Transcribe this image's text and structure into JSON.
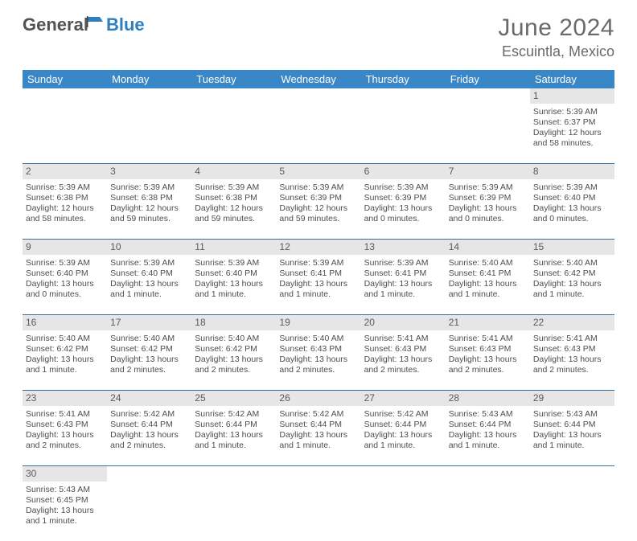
{
  "brand": {
    "general": "General",
    "blue": "Blue"
  },
  "title": "June 2024",
  "location": "Escuintla, Mexico",
  "colors": {
    "header_bg": "#3a87c8",
    "header_fg": "#ffffff",
    "row_divider": "#2f6fa8",
    "datenum_bg": "#e6e6e6",
    "text": "#4e4e4e"
  },
  "dayNames": [
    "Sunday",
    "Monday",
    "Tuesday",
    "Wednesday",
    "Thursday",
    "Friday",
    "Saturday"
  ],
  "weeks": [
    [
      null,
      null,
      null,
      null,
      null,
      null,
      {
        "d": "1",
        "sr": "Sunrise: 5:39 AM",
        "ss": "Sunset: 6:37 PM",
        "dl": "Daylight: 12 hours and 58 minutes."
      }
    ],
    [
      {
        "d": "2",
        "sr": "Sunrise: 5:39 AM",
        "ss": "Sunset: 6:38 PM",
        "dl": "Daylight: 12 hours and 58 minutes."
      },
      {
        "d": "3",
        "sr": "Sunrise: 5:39 AM",
        "ss": "Sunset: 6:38 PM",
        "dl": "Daylight: 12 hours and 59 minutes."
      },
      {
        "d": "4",
        "sr": "Sunrise: 5:39 AM",
        "ss": "Sunset: 6:38 PM",
        "dl": "Daylight: 12 hours and 59 minutes."
      },
      {
        "d": "5",
        "sr": "Sunrise: 5:39 AM",
        "ss": "Sunset: 6:39 PM",
        "dl": "Daylight: 12 hours and 59 minutes."
      },
      {
        "d": "6",
        "sr": "Sunrise: 5:39 AM",
        "ss": "Sunset: 6:39 PM",
        "dl": "Daylight: 13 hours and 0 minutes."
      },
      {
        "d": "7",
        "sr": "Sunrise: 5:39 AM",
        "ss": "Sunset: 6:39 PM",
        "dl": "Daylight: 13 hours and 0 minutes."
      },
      {
        "d": "8",
        "sr": "Sunrise: 5:39 AM",
        "ss": "Sunset: 6:40 PM",
        "dl": "Daylight: 13 hours and 0 minutes."
      }
    ],
    [
      {
        "d": "9",
        "sr": "Sunrise: 5:39 AM",
        "ss": "Sunset: 6:40 PM",
        "dl": "Daylight: 13 hours and 0 minutes."
      },
      {
        "d": "10",
        "sr": "Sunrise: 5:39 AM",
        "ss": "Sunset: 6:40 PM",
        "dl": "Daylight: 13 hours and 1 minute."
      },
      {
        "d": "11",
        "sr": "Sunrise: 5:39 AM",
        "ss": "Sunset: 6:40 PM",
        "dl": "Daylight: 13 hours and 1 minute."
      },
      {
        "d": "12",
        "sr": "Sunrise: 5:39 AM",
        "ss": "Sunset: 6:41 PM",
        "dl": "Daylight: 13 hours and 1 minute."
      },
      {
        "d": "13",
        "sr": "Sunrise: 5:39 AM",
        "ss": "Sunset: 6:41 PM",
        "dl": "Daylight: 13 hours and 1 minute."
      },
      {
        "d": "14",
        "sr": "Sunrise: 5:40 AM",
        "ss": "Sunset: 6:41 PM",
        "dl": "Daylight: 13 hours and 1 minute."
      },
      {
        "d": "15",
        "sr": "Sunrise: 5:40 AM",
        "ss": "Sunset: 6:42 PM",
        "dl": "Daylight: 13 hours and 1 minute."
      }
    ],
    [
      {
        "d": "16",
        "sr": "Sunrise: 5:40 AM",
        "ss": "Sunset: 6:42 PM",
        "dl": "Daylight: 13 hours and 1 minute."
      },
      {
        "d": "17",
        "sr": "Sunrise: 5:40 AM",
        "ss": "Sunset: 6:42 PM",
        "dl": "Daylight: 13 hours and 2 minutes."
      },
      {
        "d": "18",
        "sr": "Sunrise: 5:40 AM",
        "ss": "Sunset: 6:42 PM",
        "dl": "Daylight: 13 hours and 2 minutes."
      },
      {
        "d": "19",
        "sr": "Sunrise: 5:40 AM",
        "ss": "Sunset: 6:43 PM",
        "dl": "Daylight: 13 hours and 2 minutes."
      },
      {
        "d": "20",
        "sr": "Sunrise: 5:41 AM",
        "ss": "Sunset: 6:43 PM",
        "dl": "Daylight: 13 hours and 2 minutes."
      },
      {
        "d": "21",
        "sr": "Sunrise: 5:41 AM",
        "ss": "Sunset: 6:43 PM",
        "dl": "Daylight: 13 hours and 2 minutes."
      },
      {
        "d": "22",
        "sr": "Sunrise: 5:41 AM",
        "ss": "Sunset: 6:43 PM",
        "dl": "Daylight: 13 hours and 2 minutes."
      }
    ],
    [
      {
        "d": "23",
        "sr": "Sunrise: 5:41 AM",
        "ss": "Sunset: 6:43 PM",
        "dl": "Daylight: 13 hours and 2 minutes."
      },
      {
        "d": "24",
        "sr": "Sunrise: 5:42 AM",
        "ss": "Sunset: 6:44 PM",
        "dl": "Daylight: 13 hours and 2 minutes."
      },
      {
        "d": "25",
        "sr": "Sunrise: 5:42 AM",
        "ss": "Sunset: 6:44 PM",
        "dl": "Daylight: 13 hours and 1 minute."
      },
      {
        "d": "26",
        "sr": "Sunrise: 5:42 AM",
        "ss": "Sunset: 6:44 PM",
        "dl": "Daylight: 13 hours and 1 minute."
      },
      {
        "d": "27",
        "sr": "Sunrise: 5:42 AM",
        "ss": "Sunset: 6:44 PM",
        "dl": "Daylight: 13 hours and 1 minute."
      },
      {
        "d": "28",
        "sr": "Sunrise: 5:43 AM",
        "ss": "Sunset: 6:44 PM",
        "dl": "Daylight: 13 hours and 1 minute."
      },
      {
        "d": "29",
        "sr": "Sunrise: 5:43 AM",
        "ss": "Sunset: 6:44 PM",
        "dl": "Daylight: 13 hours and 1 minute."
      }
    ],
    [
      {
        "d": "30",
        "sr": "Sunrise: 5:43 AM",
        "ss": "Sunset: 6:45 PM",
        "dl": "Daylight: 13 hours and 1 minute."
      },
      null,
      null,
      null,
      null,
      null,
      null
    ]
  ]
}
